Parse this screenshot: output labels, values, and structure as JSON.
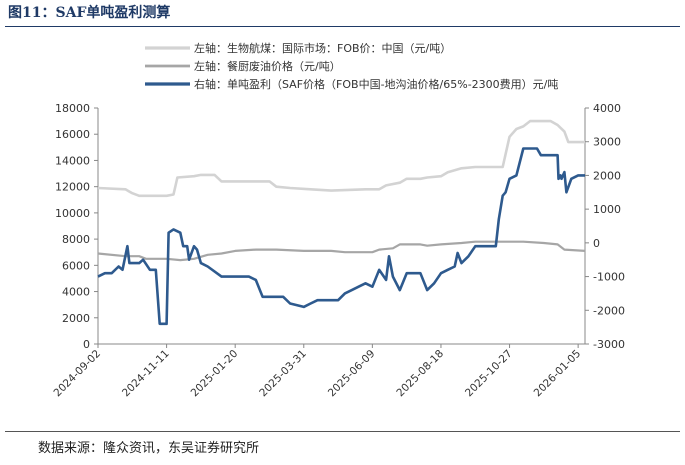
{
  "figure": {
    "title": "图11：SAF单吨盈利测算",
    "source": "数据来源：隆众资讯，东吴证券研究所"
  },
  "colors": {
    "title": "#1f3a66",
    "saf_price": "#d3d3d3",
    "ucо_price": "#a6a6a6",
    "profit": "#2e5a8e"
  },
  "chart_data": {
    "type": "line",
    "x_tick_labels": [
      "2024-09-02",
      "2024-11-11",
      "2025-01-20",
      "2025-03-31",
      "2025-06-09",
      "2025-08-18",
      "2025-10-27",
      "2026-01-05"
    ],
    "x_range": [
      "2024-09-02",
      "2026-01-12"
    ],
    "y_left": {
      "ticks": [
        0,
        2000,
        4000,
        6000,
        8000,
        10000,
        12000,
        14000,
        16000,
        18000
      ],
      "range": [
        0,
        18000
      ]
    },
    "y_right": {
      "ticks": [
        -3000,
        -2000,
        -1000,
        0,
        1000,
        2000,
        3000,
        4000
      ],
      "range": [
        -3000,
        4000
      ]
    },
    "legend_position": "top",
    "series": [
      {
        "name": "左轴：生物航煤：国际市场：FOB价：中国（元/吨）",
        "axis": "left",
        "points": [
          [
            "2024-09-02",
            11900
          ],
          [
            "2024-09-30",
            11800
          ],
          [
            "2024-10-07",
            11500
          ],
          [
            "2024-10-14",
            11300
          ],
          [
            "2024-10-21",
            11300
          ],
          [
            "2024-11-11",
            11300
          ],
          [
            "2024-11-18",
            11400
          ],
          [
            "2024-11-22",
            12700
          ],
          [
            "2024-12-09",
            12800
          ],
          [
            "2024-12-16",
            12900
          ],
          [
            "2024-12-30",
            12900
          ],
          [
            "2025-01-06",
            12400
          ],
          [
            "2025-02-24",
            12400
          ],
          [
            "2025-03-03",
            12000
          ],
          [
            "2025-03-17",
            11900
          ],
          [
            "2025-04-07",
            11800
          ],
          [
            "2025-04-28",
            11700
          ],
          [
            "2025-06-02",
            11800
          ],
          [
            "2025-06-16",
            11800
          ],
          [
            "2025-06-23",
            12100
          ],
          [
            "2025-07-07",
            12300
          ],
          [
            "2025-07-14",
            12600
          ],
          [
            "2025-07-28",
            12600
          ],
          [
            "2025-08-04",
            12700
          ],
          [
            "2025-08-18",
            12800
          ],
          [
            "2025-08-25",
            13100
          ],
          [
            "2025-09-08",
            13400
          ],
          [
            "2025-09-22",
            13500
          ],
          [
            "2025-10-20",
            13500
          ],
          [
            "2025-10-27",
            15800
          ],
          [
            "2025-11-03",
            16400
          ],
          [
            "2025-11-10",
            16600
          ],
          [
            "2025-11-17",
            17000
          ],
          [
            "2025-12-08",
            17000
          ],
          [
            "2025-12-15",
            16700
          ],
          [
            "2025-12-22",
            16200
          ],
          [
            "2025-12-26",
            15400
          ],
          [
            "2026-01-12",
            15400
          ]
        ]
      },
      {
        "name": "左轴：餐厨废油价格（元/吨）",
        "axis": "left",
        "points": [
          [
            "2024-09-02",
            6900
          ],
          [
            "2024-09-30",
            6700
          ],
          [
            "2024-10-14",
            6700
          ],
          [
            "2024-10-21",
            6500
          ],
          [
            "2024-11-11",
            6500
          ],
          [
            "2024-11-25",
            6400
          ],
          [
            "2024-12-09",
            6500
          ],
          [
            "2024-12-23",
            6800
          ],
          [
            "2025-01-06",
            6900
          ],
          [
            "2025-01-20",
            7100
          ],
          [
            "2025-02-10",
            7200
          ],
          [
            "2025-03-03",
            7200
          ],
          [
            "2025-03-31",
            7100
          ],
          [
            "2025-04-28",
            7100
          ],
          [
            "2025-05-12",
            7000
          ],
          [
            "2025-06-09",
            7000
          ],
          [
            "2025-06-16",
            7200
          ],
          [
            "2025-06-30",
            7300
          ],
          [
            "2025-07-07",
            7600
          ],
          [
            "2025-07-28",
            7600
          ],
          [
            "2025-08-04",
            7500
          ],
          [
            "2025-08-18",
            7600
          ],
          [
            "2025-09-08",
            7700
          ],
          [
            "2025-09-22",
            7800
          ],
          [
            "2025-10-27",
            7800
          ],
          [
            "2025-11-10",
            7800
          ],
          [
            "2025-12-01",
            7700
          ],
          [
            "2025-12-15",
            7600
          ],
          [
            "2025-12-22",
            7200
          ],
          [
            "2026-01-12",
            7100
          ]
        ]
      },
      {
        "name": "右轴：单吨盈利（SAF价格（FOB中国-地沟油价格/65%-2300费用）元/吨",
        "axis": "right",
        "points": [
          [
            "2024-09-02",
            -1000
          ],
          [
            "2024-09-09",
            -900
          ],
          [
            "2024-09-16",
            -900
          ],
          [
            "2024-09-23",
            -700
          ],
          [
            "2024-09-27",
            -800
          ],
          [
            "2024-10-02",
            -100
          ],
          [
            "2024-10-04",
            -600
          ],
          [
            "2024-10-14",
            -600
          ],
          [
            "2024-10-18",
            -500
          ],
          [
            "2024-10-25",
            -800
          ],
          [
            "2024-10-31",
            -800
          ],
          [
            "2024-11-04",
            -2400
          ],
          [
            "2024-11-11",
            -2400
          ],
          [
            "2024-11-13",
            300
          ],
          [
            "2024-11-18",
            400
          ],
          [
            "2024-11-25",
            300
          ],
          [
            "2024-11-28",
            -100
          ],
          [
            "2024-12-02",
            -100
          ],
          [
            "2024-12-04",
            -500
          ],
          [
            "2024-12-09",
            -100
          ],
          [
            "2024-12-12",
            -200
          ],
          [
            "2024-12-16",
            -600
          ],
          [
            "2024-12-23",
            -700
          ],
          [
            "2025-01-06",
            -1000
          ],
          [
            "2025-02-03",
            -1000
          ],
          [
            "2025-02-10",
            -1100
          ],
          [
            "2025-02-17",
            -1600
          ],
          [
            "2025-03-10",
            -1600
          ],
          [
            "2025-03-17",
            -1800
          ],
          [
            "2025-03-31",
            -1900
          ],
          [
            "2025-04-07",
            -1800
          ],
          [
            "2025-04-14",
            -1700
          ],
          [
            "2025-05-05",
            -1700
          ],
          [
            "2025-05-12",
            -1500
          ],
          [
            "2025-05-19",
            -1400
          ],
          [
            "2025-05-26",
            -1300
          ],
          [
            "2025-06-02",
            -1200
          ],
          [
            "2025-06-09",
            -1300
          ],
          [
            "2025-06-16",
            -800
          ],
          [
            "2025-06-23",
            -1100
          ],
          [
            "2025-06-26",
            -400
          ],
          [
            "2025-06-30",
            -1000
          ],
          [
            "2025-07-07",
            -1400
          ],
          [
            "2025-07-14",
            -900
          ],
          [
            "2025-07-28",
            -900
          ],
          [
            "2025-08-04",
            -1400
          ],
          [
            "2025-08-11",
            -1200
          ],
          [
            "2025-08-18",
            -900
          ],
          [
            "2025-08-25",
            -800
          ],
          [
            "2025-09-01",
            -700
          ],
          [
            "2025-09-04",
            -300
          ],
          [
            "2025-09-08",
            -600
          ],
          [
            "2025-09-15",
            -400
          ],
          [
            "2025-09-22",
            -100
          ],
          [
            "2025-10-06",
            -100
          ],
          [
            "2025-10-13",
            -100
          ],
          [
            "2025-10-16",
            700
          ],
          [
            "2025-10-20",
            1400
          ],
          [
            "2025-10-23",
            1500
          ],
          [
            "2025-10-27",
            1900
          ],
          [
            "2025-11-03",
            2000
          ],
          [
            "2025-11-10",
            2800
          ],
          [
            "2025-11-24",
            2800
          ],
          [
            "2025-11-28",
            2600
          ],
          [
            "2025-12-15",
            2600
          ],
          [
            "2025-12-16",
            1900
          ],
          [
            "2025-12-18",
            2000
          ],
          [
            "2025-12-19",
            1900
          ],
          [
            "2025-12-22",
            2100
          ],
          [
            "2025-12-24",
            1500
          ],
          [
            "2025-12-29",
            1900
          ],
          [
            "2026-01-05",
            2000
          ],
          [
            "2026-01-08",
            2000
          ],
          [
            "2026-01-12",
            2000
          ]
        ]
      }
    ]
  }
}
